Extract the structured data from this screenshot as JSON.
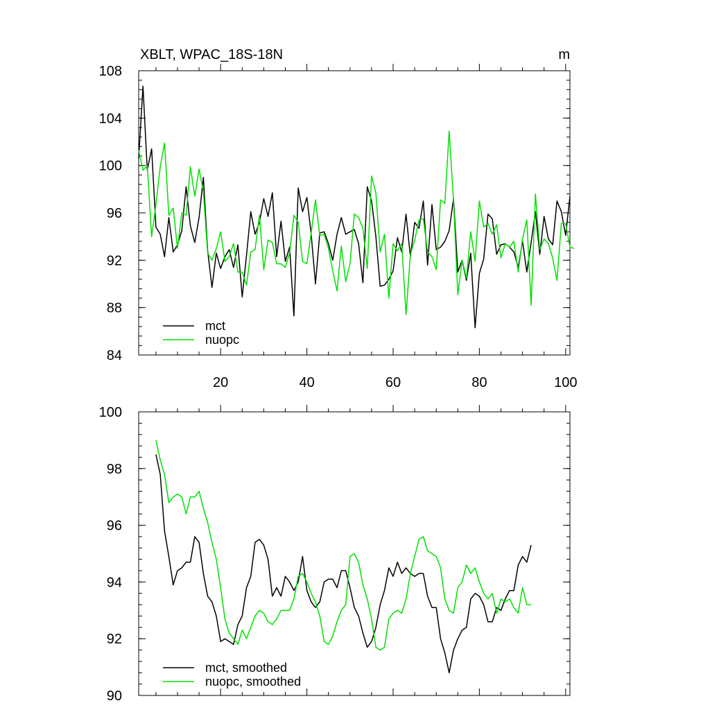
{
  "colors": {
    "mct": "#000000",
    "nuopc": "#00e000"
  },
  "chart_data": [
    {
      "type": "line",
      "title": "XBLT, WPAC_18S-18N",
      "units": "m",
      "xlim": [
        1,
        101
      ],
      "ylim": [
        84,
        108
      ],
      "xticks": [
        20,
        40,
        60,
        80,
        100
      ],
      "yticks": [
        84,
        88,
        92,
        96,
        100,
        104,
        108
      ],
      "legend_position": "bottom-left",
      "series": [
        {
          "name": "mct",
          "color_key": "mct",
          "x_start": 1,
          "values": [
            100.6,
            106.7,
            99.6,
            101.4,
            94.8,
            94.2,
            92.3,
            95.6,
            92.7,
            93.3,
            94.5,
            98.2,
            94.9,
            93.5,
            95.6,
            99.0,
            92.8,
            89.7,
            92.6,
            91.3,
            92.3,
            92.9,
            91.4,
            93.3,
            88.9,
            92.4,
            96.1,
            94.2,
            95.2,
            97.2,
            95.7,
            97.7,
            92.3,
            95.3,
            91.9,
            93.1,
            87.3,
            98.1,
            96.1,
            97.3,
            94.2,
            90.0,
            94.3,
            94.4,
            93.4,
            92.0,
            94.2,
            95.6,
            94.2,
            94.4,
            94.6,
            93.4,
            90.1,
            98.2,
            97.0,
            94.0,
            89.8,
            89.9,
            90.4,
            91.1,
            93.9,
            92.7,
            95.9,
            92.3,
            95.2,
            94.7,
            97.0,
            91.6,
            96.7,
            92.9,
            93.1,
            93.6,
            94.5,
            97.2,
            91.0,
            92.0,
            90.3,
            92.6,
            86.3,
            90.9,
            92.1,
            95.9,
            95.5,
            92.5,
            93.3,
            93.4,
            93.1,
            92.7,
            91.4,
            93.6,
            91.0,
            93.5,
            96.1,
            92.5,
            95.7,
            93.8,
            93.3,
            97.0,
            96.1,
            94.1,
            97.4
          ]
        },
        {
          "name": "nuopc",
          "color_key": "nuopc",
          "x_start": 1,
          "values": [
            101.3,
            99.6,
            100.0,
            94.0,
            96.7,
            99.9,
            101.9,
            95.8,
            96.4,
            93.0,
            96.0,
            95.8,
            99.9,
            97.4,
            99.7,
            97.8,
            92.6,
            92.0,
            93.0,
            94.4,
            91.9,
            92.3,
            93.4,
            91.0,
            91.0,
            89.9,
            92.7,
            92.9,
            95.8,
            91.2,
            93.7,
            93.5,
            91.7,
            91.7,
            91.4,
            92.6,
            95.8,
            95.2,
            91.9,
            91.7,
            94.3,
            97.1,
            94.1,
            94.2,
            93.0,
            91.1,
            89.4,
            93.2,
            90.2,
            91.7,
            95.9,
            95.6,
            94.7,
            91.3,
            99.1,
            97.7,
            92.7,
            94.2,
            88.8,
            93.4,
            92.8,
            93.4,
            87.4,
            92.5,
            93.7,
            95.4,
            95.5,
            92.7,
            92.3,
            91.2,
            97.1,
            96.8,
            102.9,
            97.0,
            89.1,
            92.0,
            90.5,
            94.4,
            91.9,
            97.0,
            94.8,
            95.1,
            94.2,
            95.0,
            92.2,
            93.4,
            93.1,
            93.6,
            91.0,
            93.8,
            95.4,
            88.2,
            97.6,
            92.9,
            93.8,
            93.4,
            92.2,
            90.3,
            95.1,
            95.1,
            93.1,
            93.0
          ]
        }
      ]
    },
    {
      "type": "line",
      "title": "",
      "units": "",
      "xlim": [
        1,
        101
      ],
      "ylim": [
        90,
        100
      ],
      "xticks": [
        20,
        40,
        60,
        80,
        100
      ],
      "yticks": [
        90,
        92,
        94,
        96,
        98,
        100
      ],
      "legend_position": "bottom-left",
      "series": [
        {
          "name": "mct, smoothed",
          "color_key": "mct",
          "x_start": 5,
          "values": [
            98.5,
            97.8,
            95.8,
            94.9,
            93.9,
            94.4,
            94.5,
            94.7,
            94.7,
            95.6,
            95.4,
            94.3,
            93.5,
            93.3,
            92.8,
            91.9,
            92.0,
            91.9,
            91.8,
            92.5,
            92.8,
            93.8,
            94.2,
            95.4,
            95.5,
            95.3,
            94.8,
            93.5,
            93.8,
            93.5,
            94.2,
            94.0,
            93.7,
            94.0,
            94.9,
            93.7,
            93.3,
            93.1,
            93.3,
            94.0,
            94.1,
            94.1,
            93.8,
            94.4,
            94.4,
            93.8,
            93.1,
            92.8,
            92.2,
            91.7,
            91.9,
            92.4,
            93.2,
            93.7,
            94.5,
            94.2,
            94.7,
            94.3,
            94.5,
            94.3,
            94.2,
            94.3,
            94.3,
            93.5,
            93.1,
            93.1,
            92.0,
            91.5,
            90.8,
            91.6,
            92.0,
            92.3,
            92.4,
            93.4,
            93.6,
            93.5,
            93.2,
            92.6,
            92.6,
            93.1,
            93.0,
            93.4,
            93.7,
            93.7,
            94.6,
            94.9,
            94.7,
            95.3
          ]
        },
        {
          "name": "nuopc, smoothed",
          "color_key": "nuopc",
          "x_start": 5,
          "values": [
            99.0,
            98.3,
            97.8,
            96.8,
            97.0,
            97.1,
            97.0,
            96.4,
            97.0,
            97.0,
            97.2,
            96.6,
            96.1,
            95.4,
            94.8,
            93.8,
            92.7,
            92.2,
            92.0,
            91.8,
            92.3,
            92.0,
            92.4,
            92.8,
            93.0,
            92.9,
            92.6,
            92.5,
            92.7,
            93.0,
            93.0,
            93.0,
            93.4,
            94.2,
            94.3,
            94.0,
            93.6,
            93.3,
            92.8,
            91.9,
            91.8,
            92.1,
            92.6,
            93.0,
            93.2,
            94.9,
            95.0,
            94.7,
            93.9,
            93.4,
            92.7,
            91.7,
            91.6,
            91.7,
            92.7,
            92.9,
            93.0,
            92.9,
            93.4,
            94.3,
            94.9,
            95.5,
            95.6,
            95.1,
            95.0,
            94.9,
            94.5,
            93.4,
            93.0,
            92.9,
            93.8,
            94.0,
            94.6,
            94.3,
            94.5,
            94.0,
            93.6,
            93.4,
            93.6,
            92.9,
            93.4,
            93.3,
            93.4,
            93.1,
            92.9,
            93.8,
            93.2,
            93.2
          ]
        }
      ]
    }
  ]
}
